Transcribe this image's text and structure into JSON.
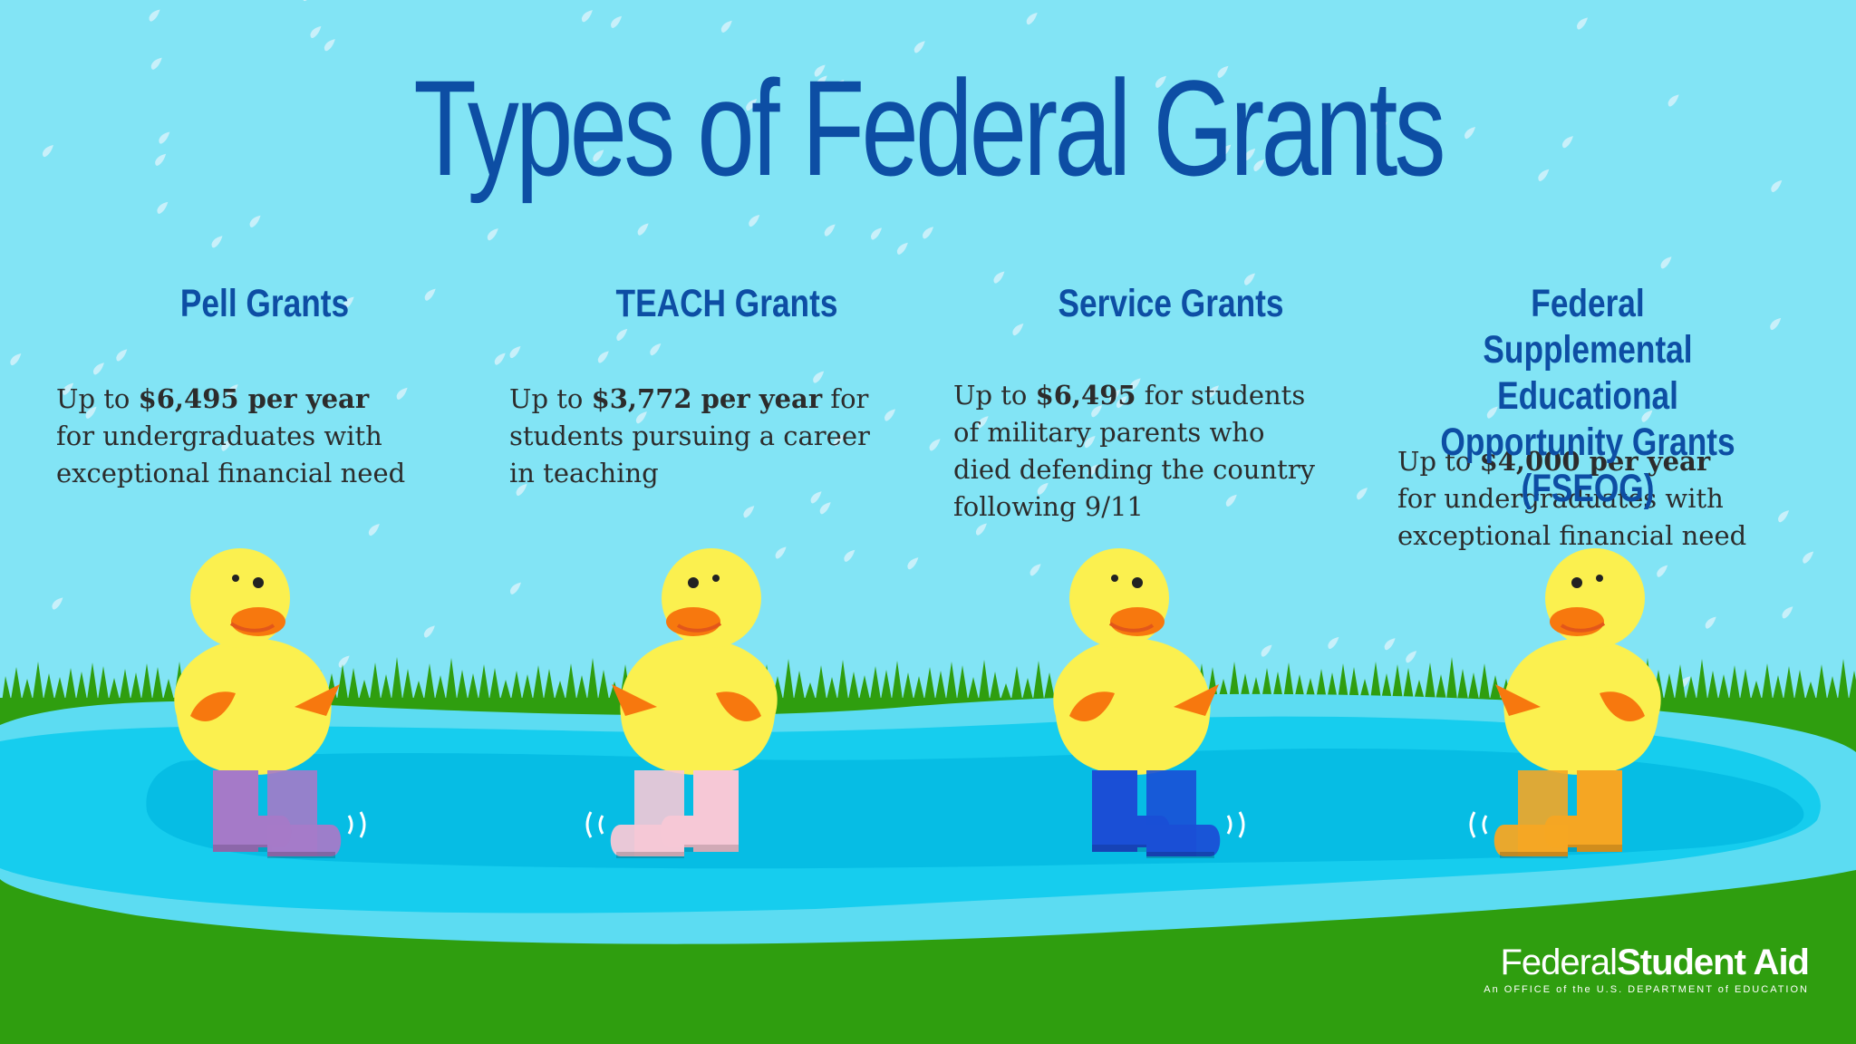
{
  "title": "Types of Federal Grants",
  "grants": [
    {
      "heading": "Pell Grants",
      "lines": [
        [
          "Up to ",
          "$6,495 per year",
          ""
        ],
        [
          "for undergraduates with",
          "",
          ""
        ],
        [
          "exceptional financial need",
          "",
          ""
        ]
      ],
      "boot_color": "#a57ac8"
    },
    {
      "heading": "TEACH Grants",
      "lines": [
        [
          "Up to ",
          "$3,772 per year",
          " for"
        ],
        [
          "students pursuing a career",
          "",
          ""
        ],
        [
          "in teaching",
          "",
          ""
        ]
      ],
      "boot_color": "#f6c8d6"
    },
    {
      "heading": "Service Grants",
      "lines": [
        [
          "Up to ",
          "$6,495",
          " for students"
        ],
        [
          "of military parents who",
          "",
          ""
        ],
        [
          "died defending the country",
          "",
          ""
        ],
        [
          "following 9/11",
          "",
          ""
        ]
      ],
      "boot_color": "#1a4fd6"
    },
    {
      "heading": "Federal Supplemental Educational Opportunity Grants (FSEOG)",
      "lines": [
        [
          "Up to ",
          "$4,000 per year",
          ""
        ],
        [
          "for undergraduates with",
          "",
          ""
        ],
        [
          "exceptional financial need",
          "",
          ""
        ]
      ],
      "boot_color": "#f5a623"
    }
  ],
  "logo": {
    "name_regular": "Federal",
    "name_bold": "Student Aid",
    "tagline": "An OFFICE of the U.S. DEPARTMENT of EDUCATION"
  },
  "colors": {
    "sky": "#82e4f5",
    "grass": "#2f9e0f",
    "pond": "#16cdee",
    "title": "#0d4ea4",
    "duck_body": "#fbf04f",
    "duck_beak": "#f7780e"
  },
  "icons": [
    "duck-illustration",
    "rain-drop-icon",
    "grass-blades",
    "pond"
  ]
}
